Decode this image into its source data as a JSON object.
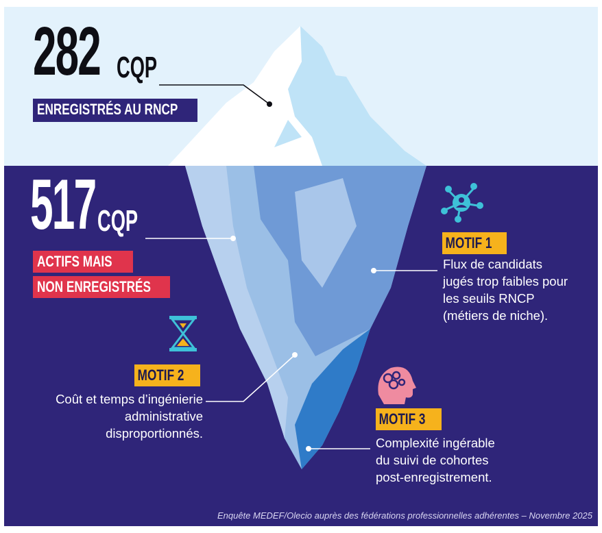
{
  "top": {
    "number": "282",
    "unit": "CQP",
    "label": "ENREGISTRÉS AU RNCP"
  },
  "bottom": {
    "number": "517",
    "unit": "CQP",
    "label_line1": "ACTIFS MAIS",
    "label_line2": "NON ENREGISTRÉS"
  },
  "motifs": [
    {
      "title": "MOTIF 1",
      "icon": "network-user-icon",
      "text": "Flux de candidats\njugés trop faibles pour\nles seuils RNCP\n(métiers de niche)."
    },
    {
      "title": "MOTIF 2",
      "icon": "hourglass-icon",
      "text": "Coût et temps d’ingénierie\nadministrative\ndisproportionnés."
    },
    {
      "title": "MOTIF 3",
      "icon": "head-complexity-icon",
      "text": "Complexité ingérable\ndu suivi de cohortes\npost-enregistrement."
    }
  ],
  "footer": "Enquête MEDEF/Olecio auprès des fédérations professionnelles adhérentes – Novembre 2025",
  "colors": {
    "sky": "#e3f2fc",
    "sea": "#2f2579",
    "accent_red": "#e0344c",
    "accent_yellow": "#f6b21c",
    "icon_teal": "#3ec1d8",
    "icon_pink": "#ef8ba0"
  }
}
